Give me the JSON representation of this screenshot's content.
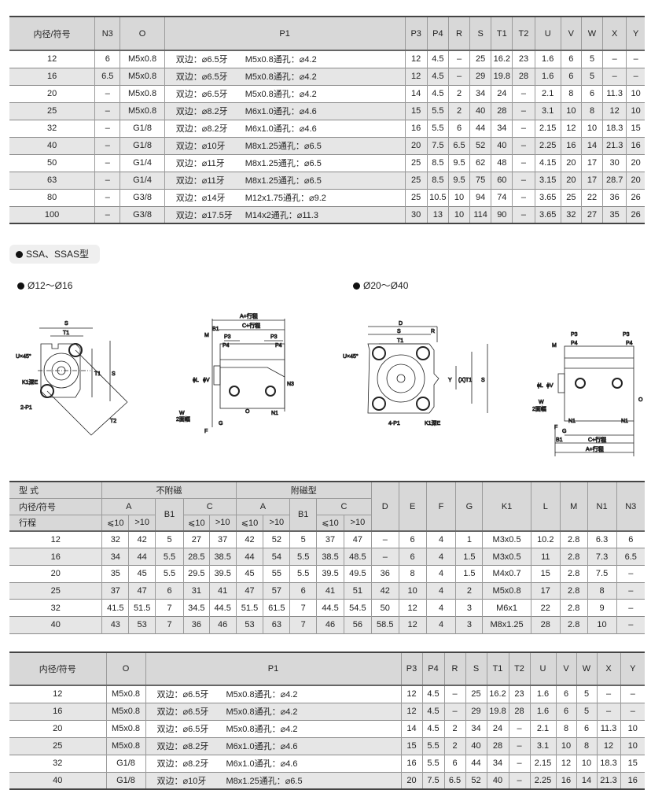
{
  "table1": {
    "headers": [
      "内径/符号",
      "N3",
      "O",
      "P1",
      "P3",
      "P4",
      "R",
      "S",
      "T1",
      "T2",
      "U",
      "V",
      "W",
      "X",
      "Y"
    ],
    "rows": [
      [
        "12",
        "6",
        "M5x0.8",
        [
          "双边：⌀6.5牙",
          "M5x0.8通孔：⌀4.2"
        ],
        "12",
        "4.5",
        "–",
        "25",
        "16.2",
        "23",
        "1.6",
        "6",
        "5",
        "–",
        "–"
      ],
      [
        "16",
        "6.5",
        "M5x0.8",
        [
          "双边：⌀6.5牙",
          "M5x0.8通孔：⌀4.2"
        ],
        "12",
        "4.5",
        "–",
        "29",
        "19.8",
        "28",
        "1.6",
        "6",
        "5",
        "–",
        "–"
      ],
      [
        "20",
        "–",
        "M5x0.8",
        [
          "双边：⌀6.5牙",
          "M5x0.8通孔：⌀4.2"
        ],
        "14",
        "4.5",
        "2",
        "34",
        "24",
        "–",
        "2.1",
        "8",
        "6",
        "11.3",
        "10"
      ],
      [
        "25",
        "–",
        "M5x0.8",
        [
          "双边：⌀8.2牙",
          "M6x1.0通孔：⌀4.6"
        ],
        "15",
        "5.5",
        "2",
        "40",
        "28",
        "–",
        "3.1",
        "10",
        "8",
        "12",
        "10"
      ],
      [
        "32",
        "–",
        "G1/8",
        [
          "双边：⌀8.2牙",
          "M6x1.0通孔：⌀4.6"
        ],
        "16",
        "5.5",
        "6",
        "44",
        "34",
        "–",
        "2.15",
        "12",
        "10",
        "18.3",
        "15"
      ],
      [
        "40",
        "–",
        "G1/8",
        [
          "双边：⌀10牙",
          "M8x1.25通孔：⌀6.5"
        ],
        "20",
        "7.5",
        "6.5",
        "52",
        "40",
        "–",
        "2.25",
        "16",
        "14",
        "21.3",
        "16"
      ],
      [
        "50",
        "–",
        "G1/4",
        [
          "双边：⌀11牙",
          "M8x1.25通孔：⌀6.5"
        ],
        "25",
        "8.5",
        "9.5",
        "62",
        "48",
        "–",
        "4.15",
        "20",
        "17",
        "30",
        "20"
      ],
      [
        "63",
        "–",
        "G1/4",
        [
          "双边：⌀11牙",
          "M8x1.25通孔：⌀6.5"
        ],
        "25",
        "8.5",
        "9.5",
        "75",
        "60",
        "–",
        "3.15",
        "20",
        "17",
        "28.7",
        "20"
      ],
      [
        "80",
        "–",
        "G3/8",
        [
          "双边：⌀14牙",
          "M12x1.75通孔：⌀9.2"
        ],
        "25",
        "10.5",
        "10",
        "94",
        "74",
        "–",
        "3.65",
        "25",
        "22",
        "36",
        "26"
      ],
      [
        "100",
        "–",
        "G3/8",
        [
          "双边：⌀17.5牙",
          "M14x2通孔：⌀11.3"
        ],
        "30",
        "13",
        "10",
        "114",
        "90",
        "–",
        "3.65",
        "32",
        "27",
        "35",
        "26"
      ]
    ]
  },
  "section": {
    "title": "SSA、SSAS型",
    "range1": "Ø12～Ø16",
    "range2": "Ø20～Ø40"
  },
  "drawings": {
    "d1": [
      "S",
      "T1",
      "U×45°",
      "T1",
      "S",
      "K1深E",
      "2-P1",
      "T2"
    ],
    "d2": [
      "A+行程",
      "C+行程",
      "B1",
      "M",
      "P3",
      "P3",
      "P4",
      "P4",
      "ϕL",
      "ϕV",
      "N3",
      "W",
      "2面幅",
      "O",
      "N1",
      "F",
      "G"
    ],
    "d3": [
      "D",
      "S",
      "R",
      "T1",
      "U×45°",
      "Y",
      "(X)",
      "T1",
      "S",
      "4-P1",
      "K1深E"
    ],
    "d4": [
      "P3",
      "P3",
      "P4",
      "P4",
      "M",
      "ϕL",
      "ϕV",
      "W",
      "2面幅",
      "O",
      "N1",
      "N1",
      "F",
      "G",
      "B1",
      "C+行程",
      "A+行程"
    ]
  },
  "table2": {
    "h_type": "型 式",
    "h_nomag": "不附磁",
    "h_mag": "附磁型",
    "h_bore": "内径/符号",
    "h_stroke": "行程",
    "h_A": "A",
    "h_B1": "B1",
    "h_C": "C",
    "h_le": "⩽10",
    "h_gt": ">10",
    "h_rest": [
      "D",
      "E",
      "F",
      "G",
      "K1",
      "L",
      "M",
      "N1",
      "N3"
    ],
    "rows": [
      [
        "12",
        "32",
        "42",
        "5",
        "27",
        "37",
        "42",
        "52",
        "5",
        "37",
        "47",
        "–",
        "6",
        "4",
        "1",
        "M3x0.5",
        "10.2",
        "2.8",
        "6.3",
        "6"
      ],
      [
        "16",
        "34",
        "44",
        "5.5",
        "28.5",
        "38.5",
        "44",
        "54",
        "5.5",
        "38.5",
        "48.5",
        "–",
        "6",
        "4",
        "1.5",
        "M3x0.5",
        "11",
        "2.8",
        "7.3",
        "6.5"
      ],
      [
        "20",
        "35",
        "45",
        "5.5",
        "29.5",
        "39.5",
        "45",
        "55",
        "5.5",
        "39.5",
        "49.5",
        "36",
        "8",
        "4",
        "1.5",
        "M4x0.7",
        "15",
        "2.8",
        "7.5",
        "–"
      ],
      [
        "25",
        "37",
        "47",
        "6",
        "31",
        "41",
        "47",
        "57",
        "6",
        "41",
        "51",
        "42",
        "10",
        "4",
        "2",
        "M5x0.8",
        "17",
        "2.8",
        "8",
        "–"
      ],
      [
        "32",
        "41.5",
        "51.5",
        "7",
        "34.5",
        "44.5",
        "51.5",
        "61.5",
        "7",
        "44.5",
        "54.5",
        "50",
        "12",
        "4",
        "3",
        "M6x1",
        "22",
        "2.8",
        "9",
        "–"
      ],
      [
        "40",
        "43",
        "53",
        "7",
        "36",
        "46",
        "53",
        "63",
        "7",
        "46",
        "56",
        "58.5",
        "12",
        "4",
        "3",
        "M8x1.25",
        "28",
        "2.8",
        "10",
        "–"
      ]
    ]
  },
  "table3": {
    "headers": [
      "内径/符号",
      "O",
      "P1",
      "P3",
      "P4",
      "R",
      "S",
      "T1",
      "T2",
      "U",
      "V",
      "W",
      "X",
      "Y"
    ],
    "rows": [
      [
        "12",
        "M5x0.8",
        [
          "双边：⌀6.5牙",
          "M5x0.8通孔：⌀4.2"
        ],
        "12",
        "4.5",
        "–",
        "25",
        "16.2",
        "23",
        "1.6",
        "6",
        "5",
        "–",
        "–"
      ],
      [
        "16",
        "M5x0.8",
        [
          "双边：⌀6.5牙",
          "M5x0.8通孔：⌀4.2"
        ],
        "12",
        "4.5",
        "–",
        "29",
        "19.8",
        "28",
        "1.6",
        "6",
        "5",
        "–",
        "–"
      ],
      [
        "20",
        "M5x0.8",
        [
          "双边：⌀6.5牙",
          "M5x0.8通孔：⌀4.2"
        ],
        "14",
        "4.5",
        "2",
        "34",
        "24",
        "–",
        "2.1",
        "8",
        "6",
        "11.3",
        "10"
      ],
      [
        "25",
        "M5x0.8",
        [
          "双边：⌀8.2牙",
          "M6x1.0通孔：⌀4.6"
        ],
        "15",
        "5.5",
        "2",
        "40",
        "28",
        "–",
        "3.1",
        "10",
        "8",
        "12",
        "10"
      ],
      [
        "32",
        "G1/8",
        [
          "双边：⌀8.2牙",
          "M6x1.0通孔：⌀4.6"
        ],
        "16",
        "5.5",
        "6",
        "44",
        "34",
        "–",
        "2.15",
        "12",
        "10",
        "18.3",
        "15"
      ],
      [
        "40",
        "G1/8",
        [
          "双边：⌀10牙",
          "M8x1.25通孔：⌀6.5"
        ],
        "20",
        "7.5",
        "6.5",
        "52",
        "40",
        "–",
        "2.25",
        "16",
        "14",
        "21.3",
        "16"
      ]
    ]
  }
}
